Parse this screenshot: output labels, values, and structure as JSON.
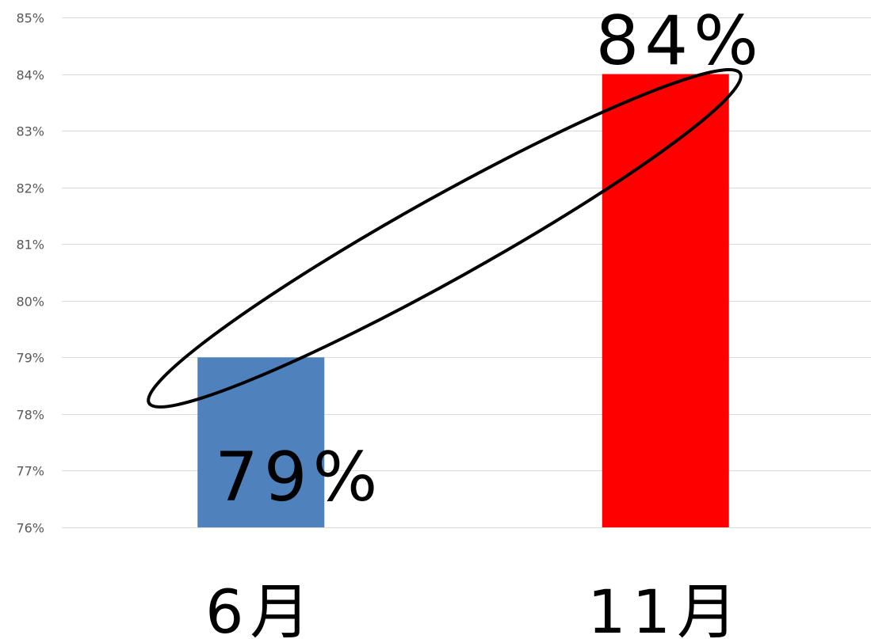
{
  "chart_data": {
    "type": "bar",
    "categories": [
      "6月",
      "11月"
    ],
    "values": [
      79,
      84
    ],
    "data_labels": [
      "79%",
      "84%"
    ],
    "ylim": [
      76,
      85
    ],
    "y_ticks": [
      "76%",
      "77%",
      "78%",
      "79%",
      "80%",
      "81%",
      "82%",
      "83%",
      "84%",
      "85%"
    ],
    "grid": true,
    "legend": "none",
    "title": "",
    "xlabel": "",
    "ylabel": "",
    "colors": [
      "#4f81bd",
      "#ff0000"
    ],
    "annotation": {
      "shape": "ellipse",
      "color": "#000000",
      "encloses": "bar tops"
    }
  }
}
